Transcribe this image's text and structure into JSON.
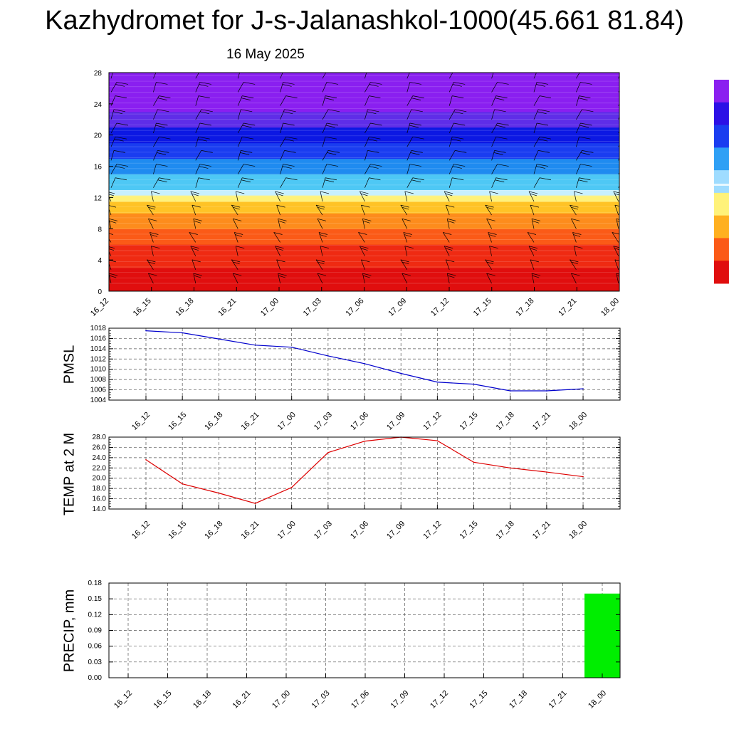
{
  "header": {
    "title": "Kazhydromet for J-s-Jalanashkol-1000(45.661 81.84)",
    "date": "16 May 2025"
  },
  "chart_data": [
    {
      "type": "heatmap",
      "title": "",
      "ylabel": "",
      "ylim": [
        0,
        28
      ],
      "yticks": [
        0,
        4,
        8,
        12,
        16,
        20,
        24,
        28
      ],
      "x": [
        "16_12",
        "16_15",
        "16_18",
        "16_21",
        "17_00",
        "17_03",
        "17_06",
        "17_09",
        "17_12",
        "17_15",
        "17_18",
        "17_21",
        "18_00"
      ],
      "color_bands": [
        {
          "from": 0,
          "to": 3,
          "color": "#e00e0e"
        },
        {
          "from": 3,
          "to": 6,
          "color": "#ef2a12"
        },
        {
          "from": 6,
          "to": 8,
          "color": "#fb5a17"
        },
        {
          "from": 8,
          "to": 10,
          "color": "#fd8c1c"
        },
        {
          "from": 10,
          "to": 11.5,
          "color": "#ffc326"
        },
        {
          "from": 11.5,
          "to": 12.3,
          "color": "#fff27a"
        },
        {
          "from": 12.3,
          "to": 13,
          "color": "#c8f0ff"
        },
        {
          "from": 13,
          "to": 15,
          "color": "#4ec8f5"
        },
        {
          "from": 15,
          "to": 17,
          "color": "#1f8bf0"
        },
        {
          "from": 17,
          "to": 19,
          "color": "#1a3df0"
        },
        {
          "from": 19,
          "to": 21,
          "color": "#0c18e3"
        },
        {
          "from": 21,
          "to": 23,
          "color": "#5f2de8"
        },
        {
          "from": 23,
          "to": 28,
          "color": "#8a1ff0"
        }
      ],
      "wind_barbs": true,
      "colorbar": [
        "#8a1ff0",
        "#2c10e6",
        "#1a3df0",
        "#2fa0f5",
        "#9fdcff",
        "#fff27a",
        "#ffb020",
        "#fb5a17",
        "#e00e0e"
      ]
    },
    {
      "type": "line",
      "ylabel": "PMSL",
      "ylim": [
        1004,
        1018
      ],
      "yticks": [
        1004,
        1006,
        1008,
        1010,
        1012,
        1014,
        1016,
        1018
      ],
      "x": [
        "16_12",
        "16_15",
        "16_18",
        "16_21",
        "17_00",
        "17_03",
        "17_06",
        "17_09",
        "17_12",
        "17_15",
        "17_18",
        "17_21",
        "18_00"
      ],
      "series": [
        {
          "values": [
            1017.5,
            1017.1,
            1015.9,
            1014.7,
            1014.3,
            1012.6,
            1011.1,
            1009.2,
            1007.5,
            1007.1,
            1005.8,
            1005.8,
            1006.2
          ],
          "color": "#0000cc"
        }
      ],
      "grid": true
    },
    {
      "type": "line",
      "ylabel": "TEMP at 2 M",
      "ylim": [
        14,
        28
      ],
      "yticks": [
        "14.0",
        "16.0",
        "18.0",
        "20.0",
        "22.0",
        "24.0",
        "26.0",
        "28.0"
      ],
      "x": [
        "16_12",
        "16_15",
        "16_18",
        "16_21",
        "17_00",
        "17_03",
        "17_06",
        "17_09",
        "17_12",
        "17_15",
        "17_18",
        "17_21",
        "18_00"
      ],
      "series": [
        {
          "values": [
            23.6,
            18.9,
            17.1,
            15.1,
            18.2,
            25.0,
            27.2,
            28.0,
            27.3,
            23.1,
            22.0,
            21.2,
            20.3
          ],
          "color": "#dd0000"
        }
      ],
      "grid": true
    },
    {
      "type": "bar",
      "ylabel": "PRECIP, mm",
      "ylim": [
        0,
        0.18
      ],
      "yticks": [
        "0.00",
        "0.03",
        "0.06",
        "0.09",
        "0.12",
        "0.15",
        "0.18"
      ],
      "categories": [
        "16_12",
        "16_15",
        "16_18",
        "16_21",
        "17_00",
        "17_03",
        "17_06",
        "17_09",
        "17_12",
        "17_15",
        "17_18",
        "17_21",
        "18_00"
      ],
      "values": [
        0,
        0,
        0,
        0,
        0,
        0,
        0,
        0,
        0,
        0,
        0,
        0,
        0.16
      ],
      "color": "#00ee00",
      "grid": true
    }
  ]
}
